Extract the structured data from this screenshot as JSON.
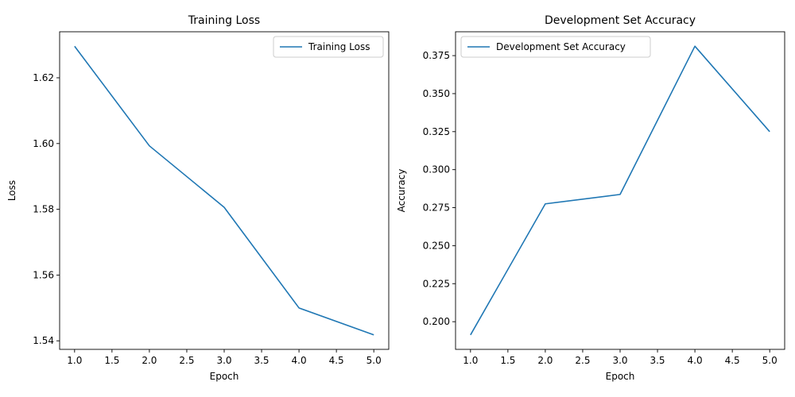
{
  "chart_data": [
    {
      "type": "line",
      "title": "Training Loss",
      "xlabel": "Epoch",
      "ylabel": "Loss",
      "x": [
        1.0,
        2.0,
        3.0,
        4.0,
        5.0
      ],
      "series": [
        {
          "name": "Training Loss",
          "values": [
            1.6296,
            1.5993,
            1.5806,
            1.55,
            1.5418
          ],
          "color": "#1f77b4"
        }
      ],
      "xlim": [
        0.8,
        5.2
      ],
      "ylim": [
        1.5374,
        1.634
      ],
      "xticks": [
        "1.0",
        "1.5",
        "2.0",
        "2.5",
        "3.0",
        "3.5",
        "4.0",
        "4.5",
        "5.0"
      ],
      "yticks": [
        "1.54",
        "1.56",
        "1.58",
        "1.60",
        "1.62"
      ],
      "grid": false,
      "legend": "upper right"
    },
    {
      "type": "line",
      "title": "Development Set Accuracy",
      "xlabel": "Epoch",
      "ylabel": "Accuracy",
      "x": [
        1.0,
        2.0,
        3.0,
        4.0,
        5.0
      ],
      "series": [
        {
          "name": "Development Set Accuracy",
          "values": [
            0.1913,
            0.2775,
            0.2837,
            0.3812,
            0.325
          ],
          "color": "#1f77b4"
        }
      ],
      "xlim": [
        0.8,
        5.2
      ],
      "ylim": [
        0.1818,
        0.3907
      ],
      "xticks": [
        "1.0",
        "1.5",
        "2.0",
        "2.5",
        "3.0",
        "3.5",
        "4.0",
        "4.5",
        "5.0"
      ],
      "yticks": [
        "0.200",
        "0.225",
        "0.250",
        "0.275",
        "0.300",
        "0.325",
        "0.350",
        "0.375"
      ],
      "grid": false,
      "legend": "upper left"
    }
  ]
}
